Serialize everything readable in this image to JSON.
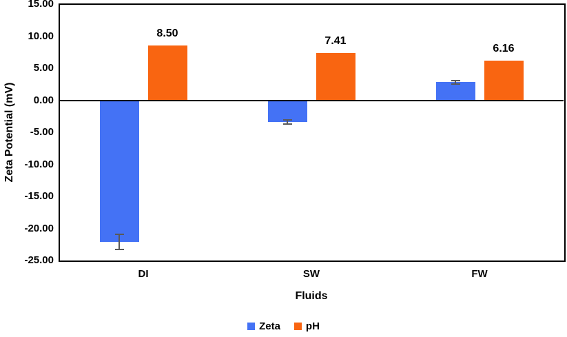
{
  "chart_data": {
    "type": "bar",
    "title": "",
    "categories": [
      "DI",
      "SW",
      "FW"
    ],
    "series": [
      {
        "name": "Zeta",
        "color": "#4472f5",
        "values": [
          -22.1,
          -3.4,
          2.8
        ],
        "error_bars": [
          1.2,
          0.3,
          0.3
        ]
      },
      {
        "name": "pH",
        "color": "#f96511",
        "values": [
          8.5,
          7.41,
          6.16
        ],
        "data_labels": [
          "8.50",
          "7.41",
          "6.16"
        ]
      }
    ],
    "xlabel": "Fluids",
    "ylabel": "Zeta Potential (mV)",
    "ylim": [
      -25,
      15
    ],
    "y_ticks": {
      "values": [
        15,
        10,
        5,
        0,
        -5,
        -10,
        -15,
        -20,
        -25
      ],
      "labels": [
        "15.00",
        "10.00",
        "5.00",
        "0.00",
        "-5.00",
        "-10.00",
        "-15.00",
        "-20.00",
        "-25.00"
      ]
    },
    "grid": false,
    "legend_position": "bottom",
    "error_bar_color": "#595959",
    "axis_color": "#000000"
  }
}
